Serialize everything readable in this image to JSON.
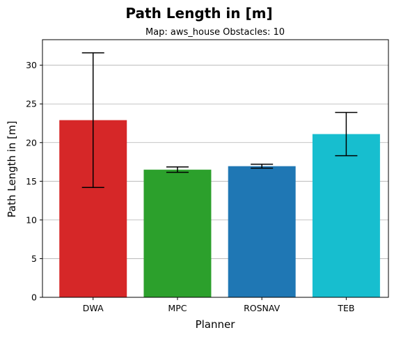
{
  "chart_data": {
    "type": "bar",
    "title": "Path Length in [m]",
    "subtitle": "Map: aws_house Obstacles: 10",
    "xlabel": "Planner",
    "ylabel": "Path Length in [m]",
    "categories": [
      "DWA",
      "MPC",
      "ROSNAV",
      "TEB"
    ],
    "values": [
      22.9,
      16.5,
      16.95,
      21.1
    ],
    "error": [
      8.7,
      0.35,
      0.25,
      2.8
    ],
    "colors": [
      "#d62728",
      "#2ca02c",
      "#1f77b4",
      "#17becf"
    ],
    "ylim": [
      0,
      33.3
    ],
    "yticks": [
      0,
      5,
      10,
      15,
      20,
      25,
      30
    ],
    "grid": "y",
    "legend": "none"
  }
}
